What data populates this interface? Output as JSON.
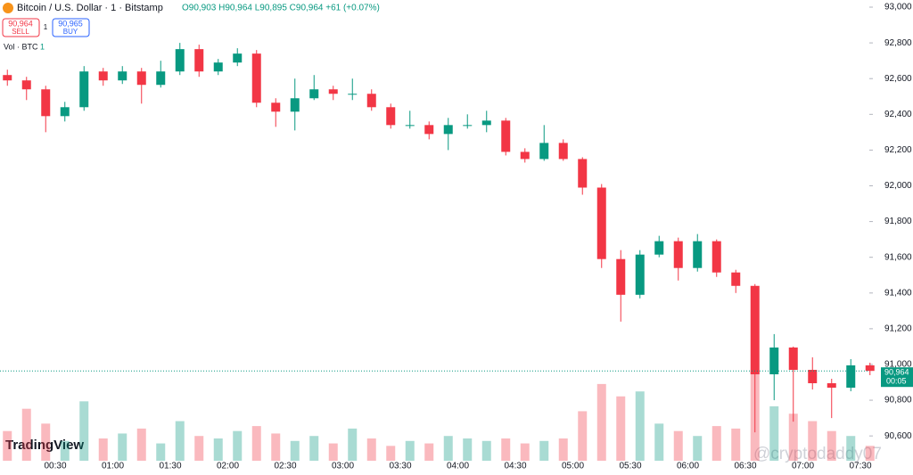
{
  "header": {
    "symbol": "Bitcoin / U.S. Dollar · 1 · Bitstamp",
    "ohlc": "O90,903 H90,964 L90,895 C90,964 +61 (+0.07%)",
    "sell_price": "90,964",
    "sell": "SELL",
    "spread": "1",
    "buy_price": "90,965",
    "buy": "BUY",
    "volume_label": "Vol · BTC",
    "volume_value": "1",
    "logo": "TradingView",
    "watermark": "@cryptodaddy07"
  },
  "chart_data": {
    "type": "candlestick",
    "x": [
      "00:00",
      "00:10",
      "00:20",
      "00:30",
      "00:40",
      "00:50",
      "01:00",
      "01:10",
      "01:20",
      "01:30",
      "01:40",
      "01:50",
      "02:00",
      "02:10",
      "02:20",
      "02:30",
      "02:40",
      "02:50",
      "03:00",
      "03:10",
      "03:20",
      "03:30",
      "03:40",
      "03:50",
      "04:00",
      "04:10",
      "04:20",
      "04:30",
      "04:40",
      "04:50",
      "05:00",
      "05:10",
      "05:20",
      "05:30",
      "05:40",
      "05:50",
      "06:00",
      "06:10",
      "06:20",
      "06:30",
      "06:40",
      "06:50",
      "07:00",
      "07:10",
      "07:20",
      "07:30"
    ],
    "open": [
      92620,
      92590,
      92540,
      92390,
      92440,
      92640,
      92590,
      92640,
      92565,
      92640,
      92765,
      92640,
      92690,
      92740,
      92465,
      92415,
      92490,
      92540,
      92515,
      92515,
      92440,
      92340,
      92340,
      92290,
      92340,
      92340,
      92365,
      92190,
      92150,
      92240,
      92150,
      91990,
      91590,
      91390,
      91615,
      91690,
      91540,
      91690,
      91515,
      91440,
      90945,
      91095,
      90970,
      90895,
      90870,
      90995
    ],
    "high": [
      92650,
      92610,
      92560,
      92470,
      92670,
      92660,
      92670,
      92660,
      92700,
      92800,
      92790,
      92710,
      92770,
      92760,
      92490,
      92600,
      92620,
      92560,
      92600,
      92540,
      92460,
      92420,
      92360,
      92380,
      92400,
      92420,
      92380,
      92210,
      92340,
      92260,
      92160,
      92010,
      91640,
      91640,
      91720,
      91710,
      91730,
      91700,
      91530,
      91450,
      91170,
      91100,
      91040,
      90920,
      91030,
      91010
    ],
    "low": [
      92560,
      92480,
      92300,
      92360,
      92420,
      92560,
      92570,
      92460,
      92550,
      92620,
      92610,
      92620,
      92670,
      92440,
      92330,
      92310,
      92480,
      92480,
      92480,
      92420,
      92320,
      92320,
      92260,
      92200,
      92320,
      92300,
      92170,
      92130,
      92140,
      92140,
      91950,
      91540,
      91240,
      91370,
      91600,
      91470,
      91520,
      91490,
      91400,
      90620,
      90800,
      90680,
      90860,
      90700,
      90850,
      90940
    ],
    "close": [
      92590,
      92540,
      92390,
      92440,
      92640,
      92590,
      92640,
      92565,
      92640,
      92765,
      92640,
      92690,
      92740,
      92465,
      92415,
      92490,
      92540,
      92515,
      92515,
      92440,
      92340,
      92340,
      92290,
      92340,
      92340,
      92365,
      92190,
      92150,
      92240,
      92150,
      91990,
      91590,
      91390,
      91615,
      91690,
      91540,
      91690,
      91515,
      91440,
      90945,
      91095,
      90970,
      90895,
      90870,
      90995,
      90964
    ],
    "volume": [
      1.2,
      2.1,
      1.5,
      0.8,
      2.4,
      0.9,
      1.1,
      1.3,
      0.7,
      1.6,
      1.0,
      0.9,
      1.2,
      1.4,
      1.1,
      0.8,
      1.0,
      0.7,
      1.3,
      0.9,
      0.6,
      0.8,
      0.7,
      1.0,
      0.9,
      0.8,
      0.9,
      0.7,
      0.8,
      0.9,
      2.0,
      3.1,
      2.6,
      2.8,
      1.5,
      1.2,
      1.0,
      1.4,
      1.3,
      3.6,
      2.2,
      1.9,
      1.6,
      1.2,
      1.0,
      0.6
    ],
    "up_color": "#089981",
    "down_color": "#f23645",
    "ylim": [
      90531,
      93040
    ],
    "yticks": [
      {
        "value": 90600,
        "label": "90,600"
      },
      {
        "value": 90800,
        "label": "90,800"
      },
      {
        "value": 91000,
        "label": "91,000"
      },
      {
        "value": 91200,
        "label": "91,200"
      },
      {
        "value": 91400,
        "label": "91,400"
      },
      {
        "value": 91600,
        "label": "91,600"
      },
      {
        "value": 91800,
        "label": "91,800"
      },
      {
        "value": 92000,
        "label": "92,000"
      },
      {
        "value": 92200,
        "label": "92,200"
      },
      {
        "value": 92400,
        "label": "92,400"
      },
      {
        "value": 92600,
        "label": "92,600"
      },
      {
        "value": 92800,
        "label": "92,800"
      },
      {
        "value": 93000,
        "label": "93,000"
      }
    ],
    "xticks": [
      "00:30",
      "01:00",
      "01:30",
      "02:00",
      "02:30",
      "03:00",
      "03:30",
      "04:00",
      "04:30",
      "05:00",
      "05:30",
      "06:00",
      "06:30",
      "07:00",
      "07:30"
    ],
    "last_price": {
      "value": 90964,
      "label": "90,964"
    },
    "countdown": "00:05"
  }
}
